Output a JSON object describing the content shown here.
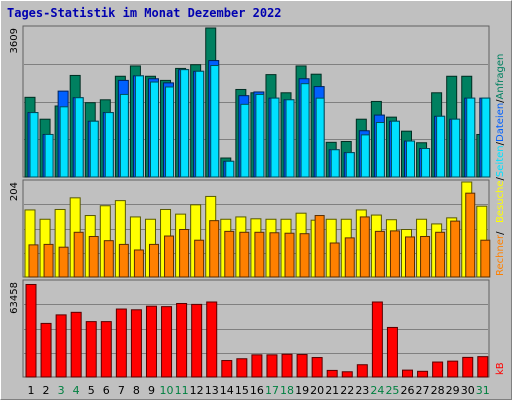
{
  "title": "Tages-Statistik im Monat Dezember 2022",
  "colors": {
    "background": "#c0c0c0",
    "title": "#0000b0",
    "anfragen": "#008060",
    "dateien": "#0060ff",
    "seiten": "#00e0ff",
    "besuche": "#ffff00",
    "rechner": "#ff8000",
    "kb": "#ff0000",
    "weekend_label": "#008040",
    "weekday_label": "#000000"
  },
  "chart_data": [
    {
      "type": "bar",
      "name": "top-panel",
      "ymax_label": "3609",
      "ylim": [
        0,
        3609
      ],
      "categories": [
        "1",
        "2",
        "3",
        "4",
        "5",
        "6",
        "7",
        "8",
        "9",
        "10",
        "11",
        "12",
        "13",
        "14",
        "15",
        "16",
        "17",
        "18",
        "19",
        "20",
        "21",
        "22",
        "23",
        "24",
        "25",
        "26",
        "27",
        "28",
        "29",
        "30",
        "31"
      ],
      "weekend": [
        false,
        false,
        true,
        true,
        false,
        false,
        false,
        false,
        false,
        true,
        true,
        false,
        false,
        false,
        false,
        false,
        true,
        true,
        false,
        false,
        false,
        false,
        false,
        true,
        true,
        false,
        false,
        false,
        false,
        false,
        true
      ],
      "series": [
        {
          "name": "Anfragen",
          "values": [
            1930,
            1400,
            1720,
            2460,
            1800,
            1870,
            2440,
            2690,
            2440,
            2340,
            2630,
            2720,
            3609,
            460,
            2120,
            2040,
            2480,
            2040,
            2690,
            2490,
            840,
            860,
            1400,
            1830,
            1450,
            1110,
            830,
            2040,
            2440,
            2440,
            1030
          ]
        },
        {
          "name": "Dateien",
          "values": [
            1560,
            1030,
            2080,
            1920,
            1350,
            1560,
            2340,
            2450,
            2380,
            2280,
            2600,
            2560,
            2820,
            380,
            1970,
            2060,
            1910,
            1870,
            2380,
            2190,
            660,
            590,
            1120,
            1500,
            1350,
            870,
            690,
            1470,
            1400,
            1910,
            1910
          ]
        },
        {
          "name": "Seiten",
          "values": [
            1560,
            1030,
            1700,
            1920,
            1350,
            1560,
            2000,
            2450,
            2300,
            2180,
            2600,
            2560,
            2700,
            380,
            1760,
            2000,
            1910,
            1870,
            2260,
            1910,
            660,
            590,
            1020,
            1320,
            1350,
            870,
            690,
            1470,
            1400,
            1910,
            1910
          ]
        }
      ],
      "legend": [
        "Anfragen",
        "/",
        "Dateien",
        "/",
        "Seiten",
        "/",
        "Besuche"
      ]
    },
    {
      "type": "bar",
      "name": "middle-panel",
      "ymax_label": "204",
      "ylim": [
        0,
        204
      ],
      "categories": [
        "1",
        "2",
        "3",
        "4",
        "5",
        "6",
        "7",
        "8",
        "9",
        "10",
        "11",
        "12",
        "13",
        "14",
        "15",
        "16",
        "17",
        "18",
        "19",
        "20",
        "21",
        "22",
        "23",
        "24",
        "25",
        "26",
        "27",
        "28",
        "29",
        "30",
        "31"
      ],
      "series": [
        {
          "name": "Besuche",
          "values": [
            144,
            124,
            145,
            170,
            132,
            153,
            164,
            129,
            124,
            145,
            135,
            155,
            173,
            124,
            129,
            125,
            124,
            124,
            137,
            122,
            124,
            124,
            144,
            133,
            123,
            102,
            124,
            114,
            127,
            204,
            152
          ]
        },
        {
          "name": "Rechner",
          "values": [
            69,
            70,
            64,
            96,
            87,
            78,
            70,
            58,
            70,
            88,
            102,
            79,
            121,
            98,
            96,
            96,
            95,
            94,
            93,
            132,
            73,
            84,
            129,
            98,
            99,
            86,
            87,
            96,
            120,
            180,
            79
          ]
        }
      ]
    },
    {
      "type": "bar",
      "name": "bottom-panel",
      "ymax_label": "63458",
      "ylim": [
        0,
        63458
      ],
      "categories": [
        "1",
        "2",
        "3",
        "4",
        "5",
        "6",
        "7",
        "8",
        "9",
        "10",
        "11",
        "12",
        "13",
        "14",
        "15",
        "16",
        "17",
        "18",
        "19",
        "20",
        "21",
        "22",
        "23",
        "24",
        "25",
        "26",
        "27",
        "28",
        "29",
        "30",
        "31"
      ],
      "series": [
        {
          "name": "kB",
          "values": [
            61800,
            35800,
            41500,
            43200,
            37000,
            37000,
            45400,
            44900,
            47300,
            47000,
            49100,
            48500,
            50100,
            11000,
            12200,
            14800,
            14800,
            15200,
            15000,
            13000,
            4400,
            3500,
            8200,
            50100,
            33100,
            4600,
            3800,
            10000,
            10600,
            13100,
            13600
          ]
        }
      ],
      "legend": [
        "kB"
      ]
    }
  ],
  "right_labels": {
    "anfragen": "Anfragen",
    "dateien": "Dateien",
    "seiten": "Seiten",
    "besuche": "Besuche",
    "rechner": "Rechner",
    "kb": "kB",
    "slash": "/"
  }
}
